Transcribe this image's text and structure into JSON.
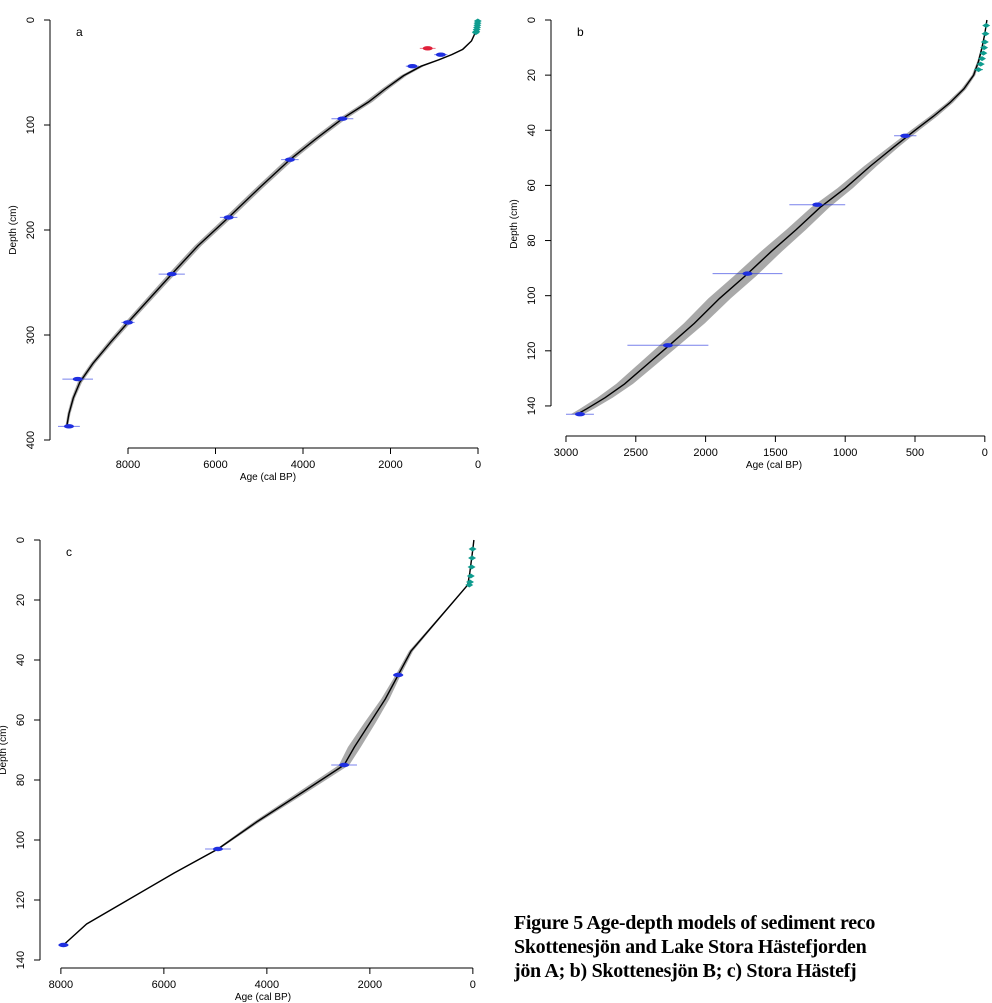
{
  "caption": {
    "lines": [
      "Figure 5 Age-depth models of sediment reco",
      "Skottenesjön and Lake Stora Hästefjorden",
      "jön A; b) Skottenesjön B; c) Stora Hästefj"
    ]
  },
  "chart_data": [
    {
      "type": "line",
      "panel_label": "a",
      "xlabel": "Age (cal BP)",
      "ylabel": "Depth (cm)",
      "xlim": [
        9600,
        0
      ],
      "ylim": [
        400,
        0
      ],
      "x_ticks": [
        8000,
        6000,
        4000,
        2000,
        0
      ],
      "y_ticks": [
        0,
        100,
        200,
        300,
        400
      ],
      "x_tick_labels": [
        "8000",
        "6000",
        "4000",
        "2000",
        "0"
      ],
      "y_tick_labels": [
        "0",
        "100",
        "200",
        "300",
        "400"
      ],
      "grid": false,
      "series": [
        {
          "role": "model",
          "x": [
            0,
            40,
            150,
            350,
            600,
            900,
            1300,
            1700,
            2100,
            2500,
            3100,
            3700,
            4300,
            5000,
            5700,
            6400,
            7000,
            7500,
            8000,
            8400,
            8800,
            9100,
            9250,
            9350,
            9400
          ],
          "y": [
            0,
            10,
            20,
            28,
            33,
            38,
            44,
            53,
            65,
            78,
            94,
            113,
            133,
            160,
            188,
            215,
            242,
            265,
            288,
            307,
            327,
            345,
            360,
            375,
            387
          ],
          "uncertainty": [
            0,
            20,
            40,
            60,
            80,
            100,
            120,
            140,
            160,
            180,
            180,
            180,
            180,
            170,
            170,
            160,
            160,
            150,
            140,
            130,
            110,
            100,
            80,
            70,
            60
          ]
        },
        {
          "role": "dates",
          "marker_color": "#1f2fe0",
          "points": [
            {
              "x": 850,
              "y": 33,
              "err": 150
            },
            {
              "x": 1500,
              "y": 44,
              "err": 150
            },
            {
              "x": 3100,
              "y": 94,
              "err": 250
            },
            {
              "x": 4300,
              "y": 133,
              "err": 200
            },
            {
              "x": 5700,
              "y": 188,
              "err": 200
            },
            {
              "x": 7000,
              "y": 242,
              "err": 300
            },
            {
              "x": 8000,
              "y": 288,
              "err": 150
            },
            {
              "x": 9150,
              "y": 342,
              "err": 350
            },
            {
              "x": 9350,
              "y": 387,
              "err": 250
            }
          ]
        },
        {
          "role": "outlier",
          "marker_color": "#e0203a",
          "points": [
            {
              "x": 1150,
              "y": 27,
              "err": 180
            }
          ]
        },
        {
          "role": "Pb-210",
          "marker_color": "#0f9c8f",
          "points": [
            {
              "x": 5,
              "y": 1,
              "err": 8
            },
            {
              "x": 10,
              "y": 3,
              "err": 12
            },
            {
              "x": 15,
              "y": 5,
              "err": 16
            },
            {
              "x": 22,
              "y": 7,
              "err": 20
            },
            {
              "x": 30,
              "y": 9,
              "err": 26
            },
            {
              "x": 40,
              "y": 11,
              "err": 34
            },
            {
              "x": 50,
              "y": 12,
              "err": 42
            }
          ]
        }
      ]
    },
    {
      "type": "line",
      "panel_label": "b",
      "xlabel": "Age (cal BP)",
      "ylabel": "Depth (cm)",
      "xlim": [
        3050,
        -30
      ],
      "ylim": [
        148,
        0
      ],
      "x_ticks": [
        3000,
        2500,
        2000,
        1500,
        1000,
        500,
        0
      ],
      "y_ticks": [
        0,
        20,
        40,
        60,
        80,
        100,
        120,
        140
      ],
      "x_tick_labels": [
        "3000",
        "2500",
        "2000",
        "1500",
        "1000",
        "500",
        "0"
      ],
      "y_tick_labels": [
        "0",
        "20",
        "40",
        "60",
        "80",
        "100",
        "120",
        "140"
      ],
      "grid": false,
      "series": [
        {
          "role": "model",
          "x": [
            -15,
            0,
            20,
            45,
            80,
            150,
            250,
            370,
            500,
            650,
            820,
            1000,
            1180,
            1350,
            1530,
            1720,
            1900,
            2080,
            2260,
            2420,
            2580,
            2720,
            2850,
            2920
          ],
          "y": [
            0,
            5,
            10,
            15,
            20,
            25,
            30,
            35,
            40,
            46,
            53,
            61,
            68,
            76,
            84,
            93,
            101,
            110,
            118,
            125,
            132,
            137,
            141,
            143
          ],
          "uncertainty": [
            5,
            8,
            12,
            18,
            25,
            35,
            45,
            55,
            60,
            70,
            90,
            110,
            130,
            140,
            150,
            160,
            160,
            150,
            140,
            130,
            120,
            110,
            100,
            90
          ]
        },
        {
          "role": "dates",
          "marker_color": "#1f2fe0",
          "points": [
            {
              "x": 570,
              "y": 42,
              "err": 80
            },
            {
              "x": 1200,
              "y": 67,
              "err": 200
            },
            {
              "x": 1700,
              "y": 92,
              "err": 250
            },
            {
              "x": 2270,
              "y": 118,
              "err": 290
            },
            {
              "x": 2900,
              "y": 143,
              "err": 100
            }
          ]
        },
        {
          "role": "Pb-210",
          "marker_color": "#0f9c8f",
          "points": [
            {
              "x": -10,
              "y": 2,
              "err": 5
            },
            {
              "x": -5,
              "y": 5,
              "err": 7
            },
            {
              "x": 0,
              "y": 8,
              "err": 9
            },
            {
              "x": 5,
              "y": 10,
              "err": 12
            },
            {
              "x": 10,
              "y": 12,
              "err": 15
            },
            {
              "x": 20,
              "y": 14,
              "err": 20
            },
            {
              "x": 30,
              "y": 16,
              "err": 26
            },
            {
              "x": 45,
              "y": 18,
              "err": 32
            }
          ]
        }
      ]
    },
    {
      "type": "line",
      "panel_label": "c",
      "xlabel": "Age (cal BP)",
      "ylabel": "Depth (cm)",
      "xlim": [
        8250,
        -100
      ],
      "ylim": [
        140,
        0
      ],
      "x_ticks": [
        8000,
        6000,
        4000,
        2000,
        0
      ],
      "y_ticks": [
        0,
        20,
        40,
        60,
        80,
        100,
        120,
        140
      ],
      "x_tick_labels": [
        "8000",
        "6000",
        "4000",
        "2000",
        "0"
      ],
      "y_tick_labels": [
        "0",
        "20",
        "40",
        "60",
        "80",
        "100",
        "120",
        "140"
      ],
      "grid": false,
      "series": [
        {
          "role": "model",
          "x": [
            -20,
            0,
            30,
            60,
            100,
            400,
            800,
            1200,
            1450,
            1700,
            2000,
            2300,
            2500,
            3300,
            4200,
            4950,
            5800,
            6700,
            7500,
            7950
          ],
          "y": [
            0,
            3,
            7,
            11,
            15,
            21,
            29,
            37,
            45,
            53,
            61,
            69,
            75,
            84,
            94,
            103,
            111,
            120,
            128,
            135
          ],
          "uncertainty": [
            2,
            4,
            8,
            12,
            20,
            30,
            50,
            80,
            100,
            160,
            220,
            250,
            200,
            170,
            120,
            60,
            40,
            30,
            20,
            15
          ]
        },
        {
          "role": "dates",
          "marker_color": "#1f2fe0",
          "points": [
            {
              "x": 1450,
              "y": 45,
              "err": 100
            },
            {
              "x": 2500,
              "y": 75,
              "err": 250
            },
            {
              "x": 4950,
              "y": 103,
              "err": 250
            },
            {
              "x": 7950,
              "y": 135,
              "err": 100
            }
          ]
        },
        {
          "role": "Pb-210",
          "marker_color": "#0f9c8f",
          "points": [
            {
              "x": 5,
              "y": 3,
              "err": 5
            },
            {
              "x": 15,
              "y": 6,
              "err": 8
            },
            {
              "x": 25,
              "y": 9,
              "err": 12
            },
            {
              "x": 40,
              "y": 12,
              "err": 18
            },
            {
              "x": 55,
              "y": 14,
              "err": 24
            },
            {
              "x": 70,
              "y": 15,
              "err": 28
            }
          ]
        }
      ]
    }
  ]
}
